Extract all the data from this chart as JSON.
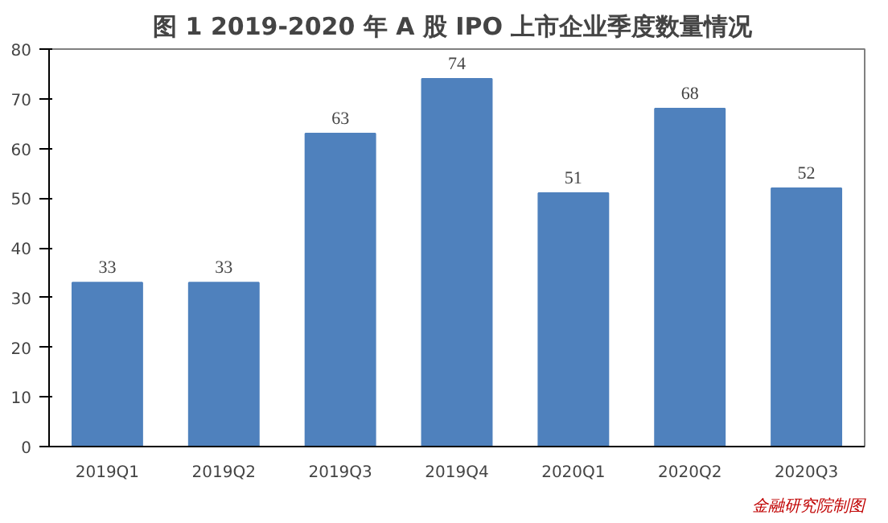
{
  "chart_data": {
    "type": "bar",
    "title": "图 1  2019-2020 年 A 股 IPO 上市企业季度数量情况",
    "categories": [
      "2019Q1",
      "2019Q2",
      "2019Q3",
      "2019Q4",
      "2020Q1",
      "2020Q2",
      "2020Q3"
    ],
    "values": [
      33,
      33,
      63,
      74,
      51,
      68,
      52
    ],
    "color": "#4f81bd",
    "ylim": [
      0,
      80
    ],
    "yticks": [
      0,
      10,
      20,
      30,
      40,
      50,
      60,
      70,
      80
    ],
    "grid": false,
    "data_labels": true,
    "annotations": [
      "金融研究院制图"
    ]
  }
}
